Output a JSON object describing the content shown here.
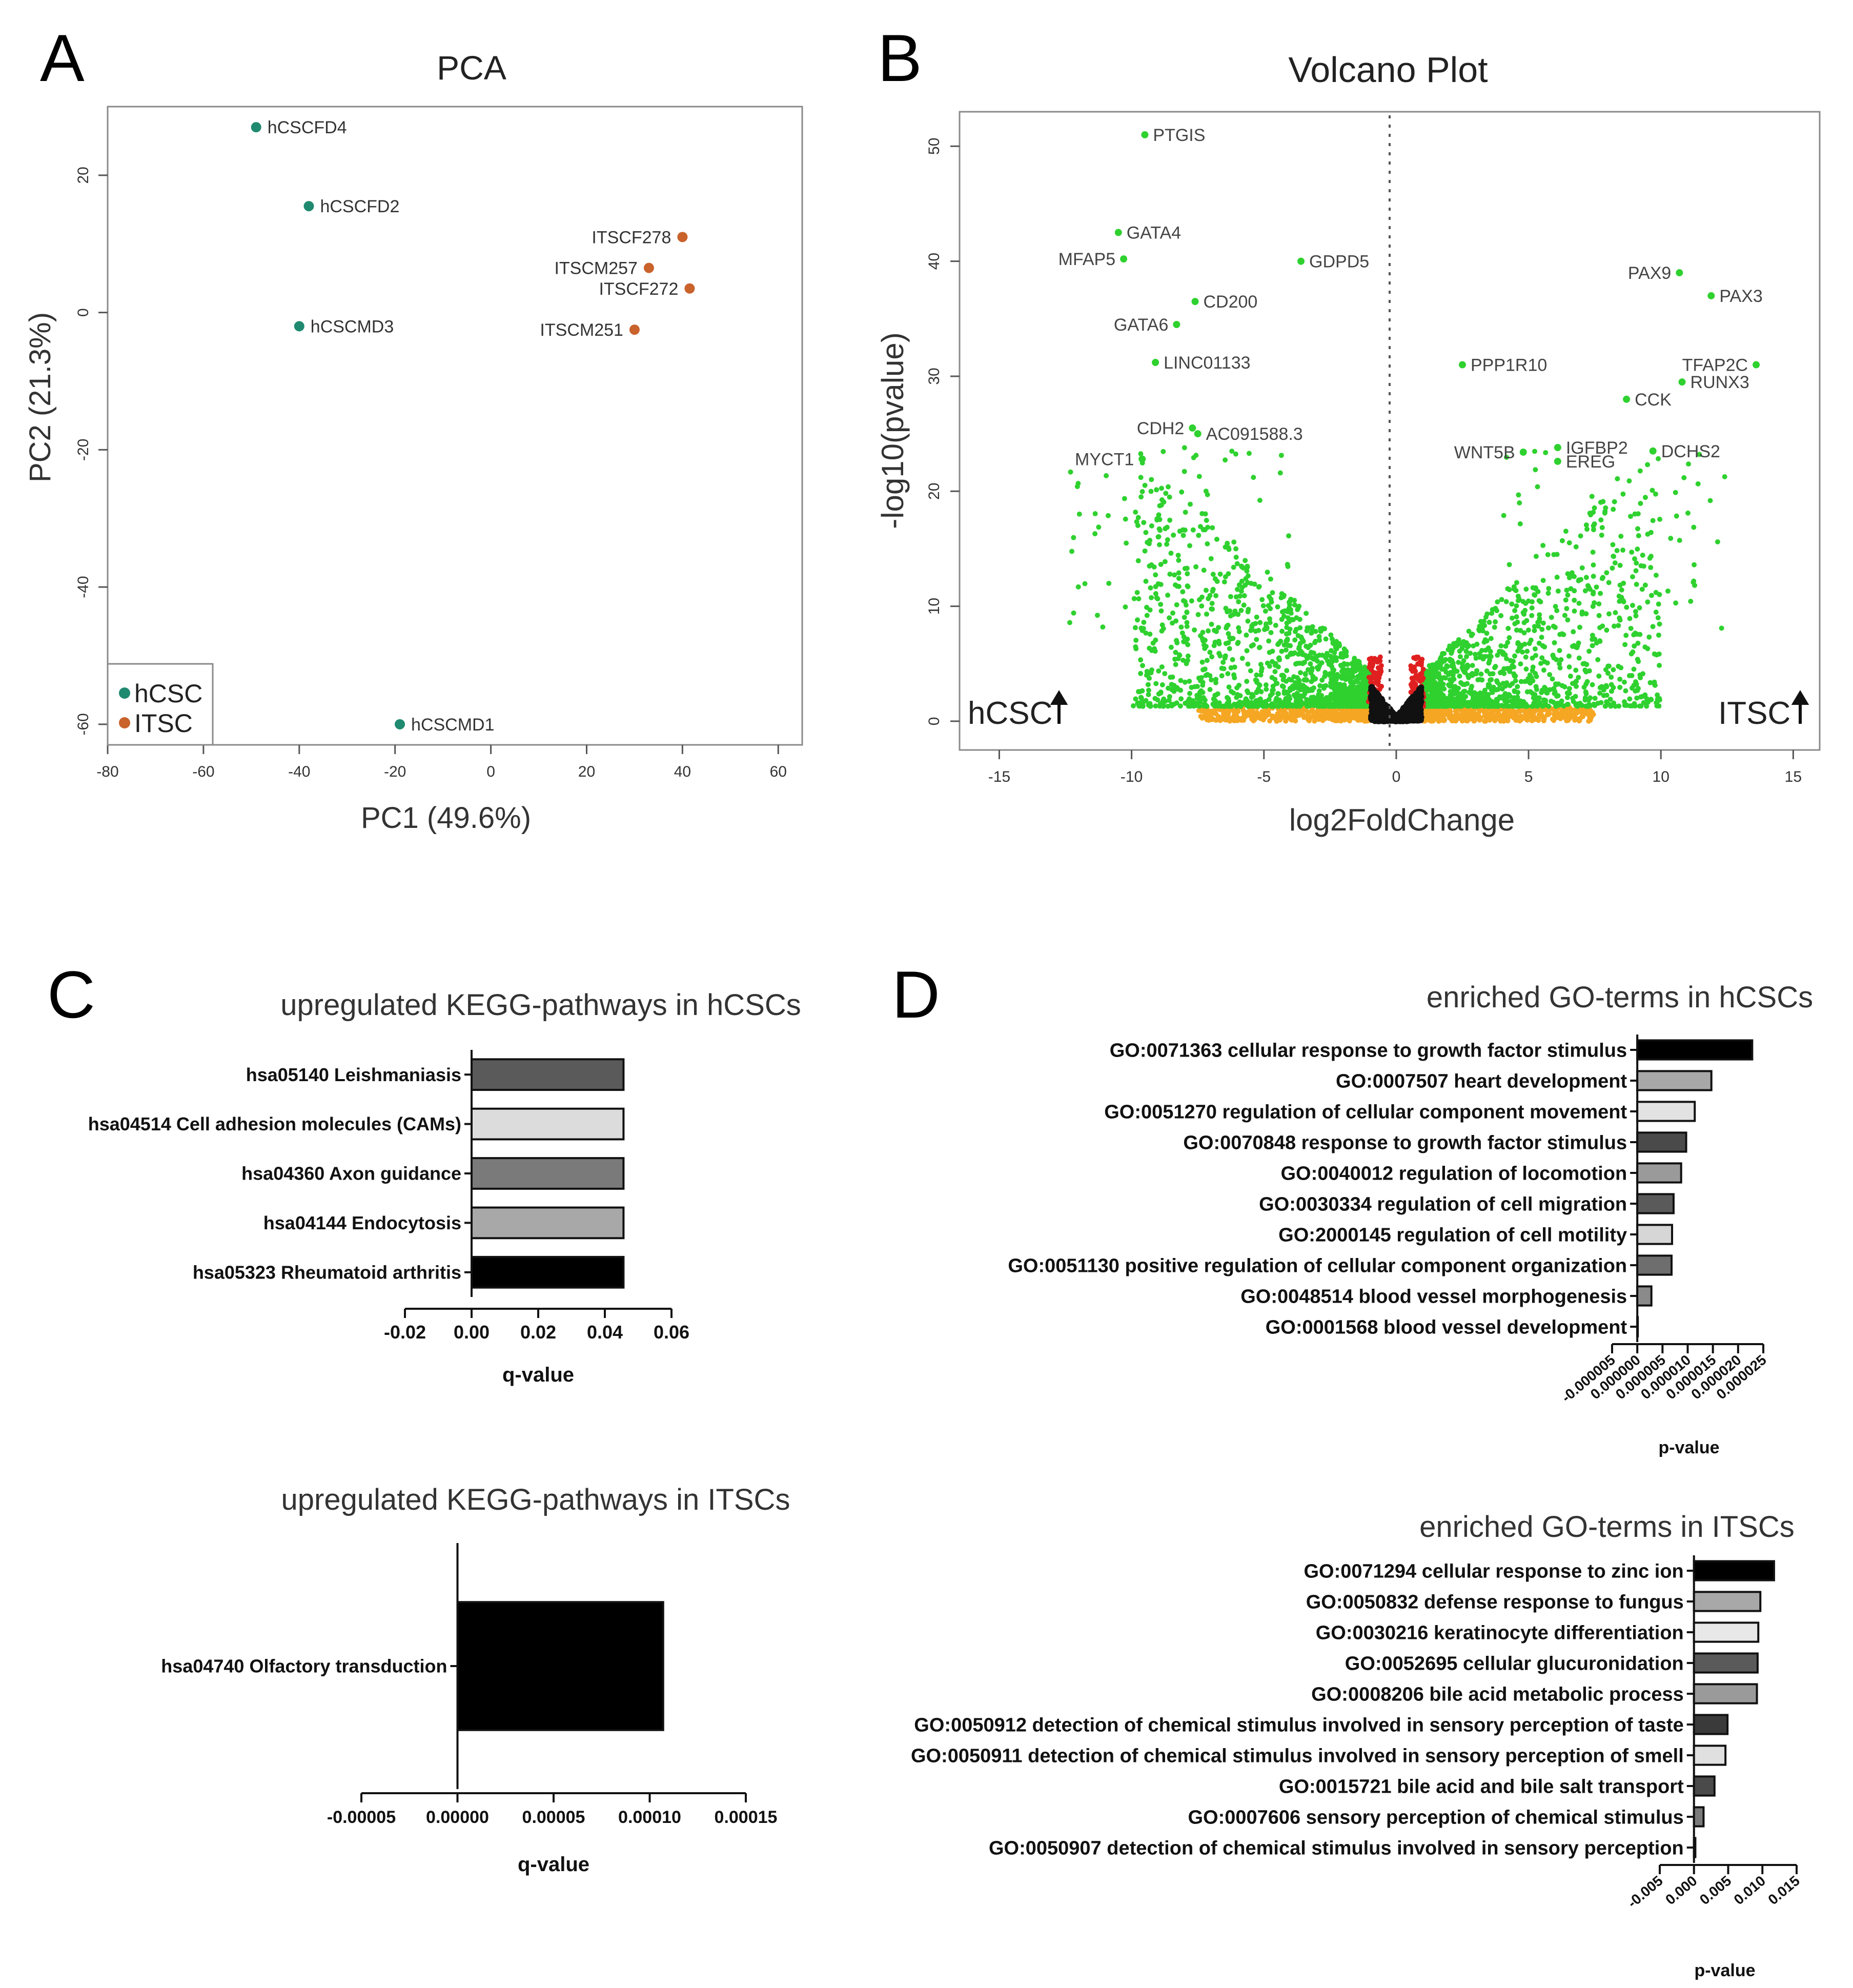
{
  "panel_letters": {
    "a": "A",
    "b": "B",
    "c": "C",
    "d": "D"
  },
  "colors": {
    "teal": "#1f8a70",
    "orange": "#c9622b",
    "green": "#2fd12f",
    "red": "#e02020",
    "amber": "#f5a623",
    "black": "#111111",
    "grid": "#666666"
  },
  "chart_data": [
    {
      "id": "pca",
      "type": "scatter",
      "title": "PCA",
      "xlabel": "PC1 (49.6%)",
      "ylabel": "PC2 (21.3%)",
      "xlim": [
        -80,
        65
      ],
      "ylim": [
        -63,
        30
      ],
      "xticks": [
        -80,
        -60,
        -40,
        -20,
        0,
        20,
        40,
        60
      ],
      "yticks": [
        -60,
        -40,
        -20,
        0,
        20
      ],
      "legend": [
        {
          "label": "hCSC",
          "color": "#1f8a70"
        },
        {
          "label": "ITSC",
          "color": "#c9622b"
        }
      ],
      "legend_position": "bottom-left",
      "points": [
        {
          "label": "hCSCFD4",
          "x": -49,
          "y": 27,
          "group": "hCSC"
        },
        {
          "label": "hCSCFD2",
          "x": -38,
          "y": 15.5,
          "group": "hCSC"
        },
        {
          "label": "hCSCMD3",
          "x": -40,
          "y": -2,
          "group": "hCSC"
        },
        {
          "label": "hCSCMD1",
          "x": -19,
          "y": -60,
          "group": "hCSC"
        },
        {
          "label": "ITSCF278",
          "x": 40,
          "y": 11,
          "group": "ITSC"
        },
        {
          "label": "ITSCM257",
          "x": 33,
          "y": 6.5,
          "group": "ITSC"
        },
        {
          "label": "ITSCF272",
          "x": 41.5,
          "y": 3.5,
          "group": "ITSC"
        },
        {
          "label": "ITSCM251",
          "x": 30,
          "y": -2.5,
          "group": "ITSC"
        }
      ]
    },
    {
      "id": "volcano",
      "type": "scatter",
      "title": "Volcano Plot",
      "xlabel": "log2FoldChange",
      "ylabel": "-log10(pvalue)",
      "xlim": [
        -16.5,
        16
      ],
      "ylim": [
        -2.5,
        53
      ],
      "xticks": [
        -15,
        -10,
        -5,
        0,
        5,
        10,
        15
      ],
      "yticks": [
        0,
        10,
        20,
        30,
        40,
        50
      ],
      "left_annotation": "hCSC",
      "right_annotation": "ITSC",
      "labeled_genes": [
        {
          "label": "PTGIS",
          "x": -9.5,
          "y": 51,
          "anchor": "start"
        },
        {
          "label": "GATA4",
          "x": -10.5,
          "y": 42.5,
          "anchor": "start"
        },
        {
          "label": "MFAP5",
          "x": -10.3,
          "y": 40.2,
          "anchor": "end"
        },
        {
          "label": "GDPD5",
          "x": -3.6,
          "y": 40,
          "anchor": "start"
        },
        {
          "label": "CD200",
          "x": -7.6,
          "y": 36.5,
          "anchor": "start"
        },
        {
          "label": "GATA6",
          "x": -8.3,
          "y": 34.5,
          "anchor": "end"
        },
        {
          "label": "LINC01133",
          "x": -9.1,
          "y": 31.2,
          "anchor": "start"
        },
        {
          "label": "CDH2",
          "x": -7.7,
          "y": 25.5,
          "anchor": "end"
        },
        {
          "label": "AC091588.3",
          "x": -7.5,
          "y": 25,
          "anchor": "start"
        },
        {
          "label": "MYCT1",
          "x": -9.6,
          "y": 22.8,
          "anchor": "end"
        },
        {
          "label": "PAX9",
          "x": 10.7,
          "y": 39,
          "anchor": "end"
        },
        {
          "label": "PAX3",
          "x": 11.9,
          "y": 37,
          "anchor": "start"
        },
        {
          "label": "PPP1R10",
          "x": 2.5,
          "y": 31,
          "anchor": "start"
        },
        {
          "label": "TFAP2C",
          "x": 13.6,
          "y": 31,
          "anchor": "end"
        },
        {
          "label": "RUNX3",
          "x": 10.8,
          "y": 29.5,
          "anchor": "start"
        },
        {
          "label": "CCK",
          "x": 8.7,
          "y": 28,
          "anchor": "start"
        },
        {
          "label": "WNT5B",
          "x": 4.8,
          "y": 23.4,
          "anchor": "end"
        },
        {
          "label": "IGFBP2",
          "x": 6.1,
          "y": 23.8,
          "anchor": "start"
        },
        {
          "label": "EREG",
          "x": 6.1,
          "y": 22.6,
          "anchor": "start"
        },
        {
          "label": "DCHS2",
          "x": 9.7,
          "y": 23.5,
          "anchor": "start"
        }
      ],
      "background_categories": [
        "green: significant",
        "orange: fold change only",
        "red: p-value only",
        "black: not significant"
      ]
    },
    {
      "id": "kegg_hcsc",
      "type": "bar",
      "orientation": "horizontal",
      "title": "upregulated KEGG-pathways in hCSCs",
      "xlabel": "q-value",
      "xlim": [
        -0.02,
        0.06
      ],
      "xticks": [
        "-0.02",
        "0.00",
        "0.02",
        "0.04",
        "0.06"
      ],
      "xtick_values": [
        -0.02,
        0,
        0.02,
        0.04,
        0.06
      ],
      "categories": [
        "hsa05140 Leishmaniasis",
        "hsa04514 Cell adhesion molecules (CAMs)",
        "hsa04360 Axon guidance",
        "hsa04144 Endocytosis",
        "hsa05323 Rheumatoid arthritis"
      ],
      "values": [
        0.0456,
        0.0456,
        0.0456,
        0.0456,
        0.0456
      ],
      "fills": [
        "#5a5a5a",
        "#dcdcdc",
        "#7a7a7a",
        "#a8a8a8",
        "#000000"
      ]
    },
    {
      "id": "kegg_itsc",
      "type": "bar",
      "orientation": "horizontal",
      "title": "upregulated KEGG-pathways in ITSCs",
      "xlabel": "q-value",
      "xlim": [
        -5e-05,
        0.00015
      ],
      "xticks": [
        "-0.00005",
        "0.00000",
        "0.00005",
        "0.00010",
        "0.00015"
      ],
      "xtick_values": [
        -5e-05,
        0,
        5e-05,
        0.0001,
        0.00015
      ],
      "categories": [
        "hsa04740 Olfactory transduction"
      ],
      "values": [
        0.000107
      ],
      "fills": [
        "#000000"
      ]
    },
    {
      "id": "go_hcsc",
      "type": "bar",
      "orientation": "horizontal",
      "title": "enriched GO-terms in hCSCs",
      "xlabel": "p-value",
      "xlim": [
        -5e-06,
        2.5e-05
      ],
      "xticks": [
        "-0.000005",
        "0.000000",
        "0.000005",
        "0.000010",
        "0.000015",
        "0.000020",
        "0.000025"
      ],
      "xtick_values": [
        -5e-06,
        0,
        5e-06,
        1e-05,
        1.5e-05,
        2e-05,
        2.5e-05
      ],
      "categories": [
        "GO:0071363 cellular response to growth factor stimulus",
        "GO:0007507 heart development",
        "GO:0051270 regulation of cellular component movement",
        "GO:0070848 response to growth factor stimulus",
        "GO:0040012 regulation of locomotion",
        "GO:0030334 regulation of cell migration",
        "GO:2000145 regulation of cell motility",
        "GO:0051130 positive regulation of cellular component organization",
        "GO:0048514 blood vessel morphogenesis",
        "GO:0001568 blood vessel development"
      ],
      "values": [
        2.28e-05,
        1.47e-05,
        1.14e-05,
        9.7e-06,
        8.7e-06,
        7.2e-06,
        6.9e-06,
        6.8e-06,
        2.8e-06,
        1e-07
      ],
      "fills": [
        "#000000",
        "#a8a8a8",
        "#e2e2e2",
        "#4a4a4a",
        "#9a9a9a",
        "#5a5a5a",
        "#d6d6d6",
        "#6e6e6e",
        "#8a8a8a",
        "#ffffff"
      ]
    },
    {
      "id": "go_itsc",
      "type": "bar",
      "orientation": "horizontal",
      "title": "enriched GO-terms in ITSCs",
      "xlabel": "p-value",
      "xlim": [
        -0.005,
        0.015
      ],
      "xticks": [
        "-0.005",
        "0.000",
        "0.005",
        "0.010",
        "0.015"
      ],
      "xtick_values": [
        -0.005,
        0,
        0.005,
        0.01,
        0.015
      ],
      "categories": [
        "GO:0071294 cellular response to zinc ion",
        "GO:0050832 defense response to fungus",
        "GO:0030216 keratinocyte differentiation",
        "GO:0052695 cellular glucuronidation",
        "GO:0008206 bile acid metabolic process",
        "GO:0050912 detection of chemical stimulus involved in sensory perception of taste",
        "GO:0050911 detection of chemical stimulus involved in sensory perception of smell",
        "GO:0015721 bile acid and bile salt transport",
        "GO:0007606 sensory perception of chemical stimulus",
        "GO:0050907 detection of chemical stimulus involved in sensory perception"
      ],
      "values": [
        0.0117,
        0.0097,
        0.0094,
        0.0093,
        0.0092,
        0.0049,
        0.0046,
        0.003,
        0.0014,
        0.0002
      ],
      "fills": [
        "#000000",
        "#a8a8a8",
        "#e8e8e8",
        "#5a5a5a",
        "#9a9a9a",
        "#3a3a3a",
        "#e0e0e0",
        "#4a4a4a",
        "#7a7a7a",
        "#ffffff"
      ]
    }
  ]
}
